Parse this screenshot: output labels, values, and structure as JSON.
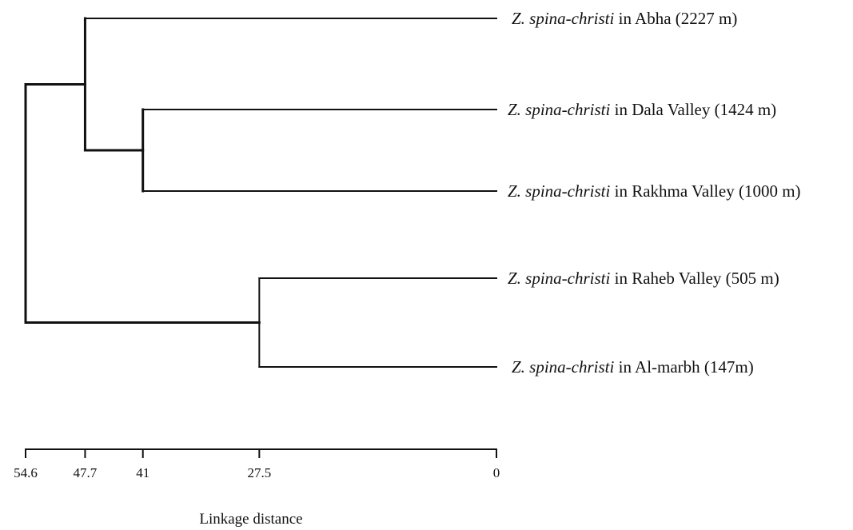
{
  "chart_data": {
    "type": "dendrogram",
    "axis": {
      "label": "Linkage distance",
      "ticks": [
        "54.6",
        "47.7",
        "41",
        "27.5",
        "0"
      ],
      "range": [
        54.6,
        0
      ]
    },
    "leaves": [
      {
        "species": "Z. spina-christi",
        "site": "in Abha (2227 m)"
      },
      {
        "species": "Z. spina-christi",
        "site": "in Dala Valley (1424 m)"
      },
      {
        "species": "Z. spina-christi",
        "site": "in Rakhma Valley (1000 m)"
      },
      {
        "species": "Z. spina-christi",
        "site": "in Raheb Valley (505 m)"
      },
      {
        "species": "Z. spina-christi",
        "site": "in Al-marbh (147m)"
      }
    ],
    "merges": [
      {
        "left": 1,
        "right": 2,
        "distance": 41
      },
      {
        "left": 3,
        "right": 4,
        "distance": 27.5
      },
      {
        "left": 0,
        "right": "Dala+Rakhma",
        "distance": 47.7
      },
      {
        "left": "Abha+Dala+Rakhma",
        "right": "Raheb+Al-marbh",
        "distance": 54.6
      }
    ]
  }
}
